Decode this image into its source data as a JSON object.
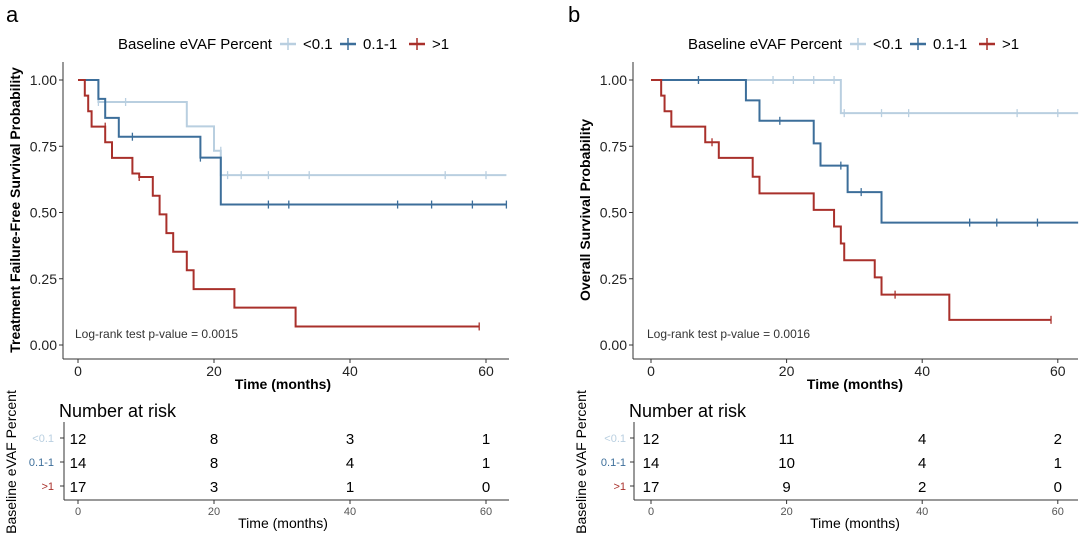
{
  "colors": {
    "low": "#b9cfe0",
    "mid": "#3c6e9a",
    "high": "#a9302b",
    "axis": "#333333",
    "tick_text": "#4d4d4d"
  },
  "panels": [
    {
      "letter": "a",
      "legend": {
        "title": "Baseline eVAF Percent",
        "items": [
          "<0.1",
          "0.1-1",
          ">1"
        ]
      },
      "pvalue": "Log-rank test p-value = 0.0015",
      "risk": {
        "title": "Number at risk",
        "ylabel": "Baseline eVAF Percent",
        "xlabel": "Time (months)",
        "x_ticks": [
          "0",
          "20",
          "40",
          "60"
        ],
        "rows": [
          [
            "12",
            "8",
            "3",
            "1"
          ],
          [
            "14",
            "8",
            "4",
            "1"
          ],
          [
            "17",
            "3",
            "1",
            "0"
          ]
        ]
      }
    },
    {
      "letter": "b",
      "legend": {
        "title": "Baseline eVAF Percent",
        "items": [
          "<0.1",
          "0.1-1",
          ">1"
        ]
      },
      "pvalue": "Log-rank test p-value = 0.0016",
      "risk": {
        "title": "Number at risk",
        "ylabel": "Baseline eVAF Percent",
        "xlabel": "Time (months)",
        "x_ticks": [
          "0",
          "20",
          "40",
          "60"
        ],
        "rows": [
          [
            "12",
            "11",
            "4",
            "2"
          ],
          [
            "14",
            "10",
            "4",
            "1"
          ],
          [
            "17",
            "9",
            "2",
            "0"
          ]
        ]
      }
    }
  ],
  "chart_data": [
    {
      "type": "line",
      "subtype": "kaplan-meier-step",
      "title": "",
      "xlabel": "Time (months)",
      "ylabel": "Treatment Failure-Free Survival Probability",
      "xlim": [
        0,
        63
      ],
      "ylim": [
        0,
        1
      ],
      "x_ticks": [
        0,
        20,
        40,
        60
      ],
      "y_ticks": [
        0,
        0.25,
        0.5,
        0.75,
        1.0
      ],
      "y_tick_labels": [
        "0.00",
        "0.25",
        "0.50",
        "0.75",
        "1.00"
      ],
      "series": [
        {
          "name": "<0.1",
          "steps": [
            [
              0,
              1.0
            ],
            [
              3,
              0.917
            ],
            [
              16,
              0.825
            ],
            [
              20,
              0.733
            ],
            [
              21,
              0.641
            ],
            [
              63,
              0.641
            ]
          ],
          "censor": [
            [
              3,
              0.917
            ],
            [
              7,
              0.917
            ],
            [
              21,
              0.733
            ],
            [
              22,
              0.641
            ],
            [
              24,
              0.641
            ],
            [
              28,
              0.641
            ],
            [
              34,
              0.641
            ],
            [
              54,
              0.641
            ],
            [
              60,
              0.641
            ]
          ]
        },
        {
          "name": "0.1-1",
          "steps": [
            [
              0,
              1.0
            ],
            [
              3,
              0.929
            ],
            [
              4,
              0.857
            ],
            [
              6,
              0.786
            ],
            [
              18,
              0.707
            ],
            [
              21,
              0.53
            ],
            [
              63,
              0.53
            ]
          ],
          "censor": [
            [
              8,
              0.786
            ],
            [
              18,
              0.707
            ],
            [
              28,
              0.53
            ],
            [
              31,
              0.53
            ],
            [
              47,
              0.53
            ],
            [
              52,
              0.53
            ],
            [
              58,
              0.53
            ],
            [
              63,
              0.53
            ]
          ]
        },
        {
          "name": ">1",
          "steps": [
            [
              0,
              1.0
            ],
            [
              1,
              0.941
            ],
            [
              1.5,
              0.882
            ],
            [
              2,
              0.824
            ],
            [
              4,
              0.765
            ],
            [
              5,
              0.706
            ],
            [
              8,
              0.647
            ],
            [
              9,
              0.634
            ],
            [
              11,
              0.563
            ],
            [
              12,
              0.493
            ],
            [
              13,
              0.422
            ],
            [
              14,
              0.352
            ],
            [
              16,
              0.282
            ],
            [
              17,
              0.211
            ],
            [
              23,
              0.141
            ],
            [
              32,
              0.07
            ],
            [
              59,
              0.07
            ]
          ],
          "censor": [
            [
              4,
              0.824
            ],
            [
              9,
              0.634
            ],
            [
              59,
              0.07
            ]
          ]
        }
      ]
    },
    {
      "type": "line",
      "subtype": "kaplan-meier-step",
      "title": "",
      "xlabel": "Time (months)",
      "ylabel": "Overall Survival Probability",
      "xlim": [
        0,
        63
      ],
      "ylim": [
        0,
        1
      ],
      "x_ticks": [
        0,
        20,
        40,
        60
      ],
      "y_ticks": [
        0,
        0.25,
        0.5,
        0.75,
        1.0
      ],
      "y_tick_labels": [
        "0.00",
        "0.25",
        "0.50",
        "0.75",
        "1.00"
      ],
      "series": [
        {
          "name": "<0.1",
          "steps": [
            [
              0,
              1.0
            ],
            [
              28,
              0.875
            ],
            [
              63,
              0.875
            ]
          ],
          "censor": [
            [
              7,
              1.0
            ],
            [
              18,
              1.0
            ],
            [
              21,
              1.0
            ],
            [
              24,
              1.0
            ],
            [
              27,
              1.0
            ],
            [
              28.5,
              0.875
            ],
            [
              34,
              0.875
            ],
            [
              38,
              0.875
            ],
            [
              54,
              0.875
            ],
            [
              60,
              0.875
            ]
          ]
        },
        {
          "name": "0.1-1",
          "steps": [
            [
              0,
              1.0
            ],
            [
              14,
              0.923
            ],
            [
              16,
              0.846
            ],
            [
              24,
              0.761
            ],
            [
              25,
              0.677
            ],
            [
              28,
              0.677
            ],
            [
              29,
              0.577
            ],
            [
              34,
              0.462
            ],
            [
              63,
              0.462
            ]
          ],
          "censor": [
            [
              7,
              1.0
            ],
            [
              19,
              0.846
            ],
            [
              28,
              0.677
            ],
            [
              31,
              0.577
            ],
            [
              47,
              0.462
            ],
            [
              51,
              0.462
            ],
            [
              57,
              0.462
            ]
          ]
        },
        {
          "name": ">1",
          "steps": [
            [
              0,
              1.0
            ],
            [
              1.5,
              0.941
            ],
            [
              2,
              0.882
            ],
            [
              3,
              0.824
            ],
            [
              8,
              0.765
            ],
            [
              9,
              0.765
            ],
            [
              10,
              0.706
            ],
            [
              15,
              0.635
            ],
            [
              16,
              0.572
            ],
            [
              24,
              0.51
            ],
            [
              27,
              0.447
            ],
            [
              28,
              0.383
            ],
            [
              28.5,
              0.32
            ],
            [
              33,
              0.255
            ],
            [
              34,
              0.19
            ],
            [
              44,
              0.095
            ],
            [
              59,
              0.095
            ]
          ],
          "censor": [
            [
              9,
              0.765
            ],
            [
              36,
              0.19
            ],
            [
              59,
              0.095
            ]
          ]
        }
      ]
    }
  ]
}
